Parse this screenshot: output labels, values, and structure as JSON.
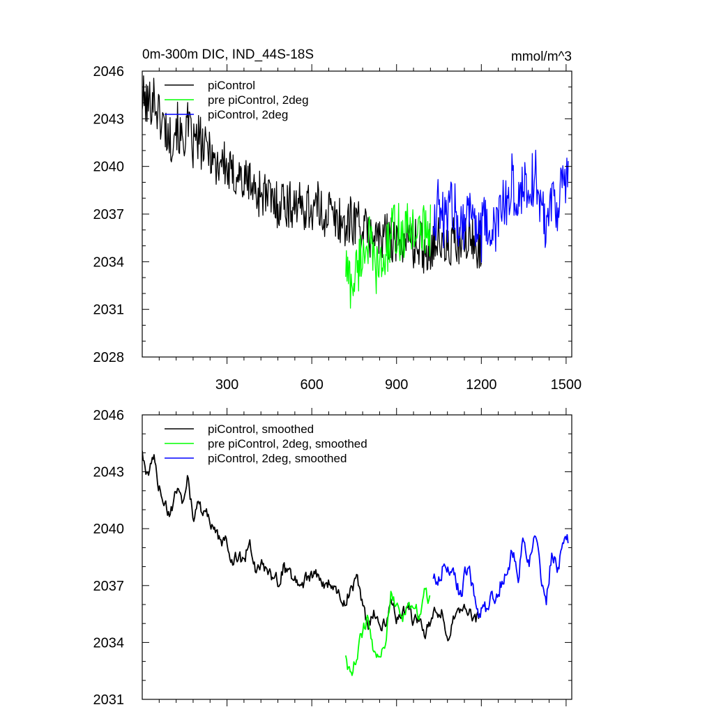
{
  "chart_data": [
    {
      "type": "line",
      "title": "0m-300m DIC, IND_44S-18S",
      "units": "mmol/m^3",
      "xlim": [
        0,
        1520
      ],
      "ylim": [
        2028,
        2046
      ],
      "x_ticks": [
        300,
        600,
        900,
        1200,
        1500
      ],
      "x_tick_labels": [
        "300",
        "600",
        "900",
        "1200",
        "1500"
      ],
      "y_ticks": [
        2028,
        2031,
        2034,
        2037,
        2040,
        2043,
        2046
      ],
      "y_tick_labels": [
        "2028",
        "2031",
        "2034",
        "2037",
        "2040",
        "2043",
        "2046"
      ],
      "grid": false,
      "legend_position": "top-left",
      "series": [
        {
          "name": "piControl",
          "color": "#000000",
          "x": [
            0,
            20,
            40,
            60,
            80,
            100,
            120,
            140,
            160,
            180,
            200,
            220,
            240,
            260,
            280,
            300,
            320,
            340,
            360,
            380,
            400,
            420,
            440,
            460,
            480,
            500,
            520,
            540,
            560,
            580,
            600,
            620,
            640,
            660,
            680,
            700,
            720,
            740,
            760,
            780,
            800,
            820,
            840,
            860,
            880,
            900,
            920,
            940,
            960,
            980,
            1000,
            1020,
            1040,
            1060,
            1080,
            1100,
            1120,
            1140,
            1160,
            1180,
            1200
          ],
          "y": [
            2044.3,
            2043.8,
            2044.5,
            2043.2,
            2042.5,
            2041.6,
            2042.8,
            2041.4,
            2042.6,
            2041.2,
            2041.8,
            2040.9,
            2041.3,
            2039.9,
            2040.6,
            2039.7,
            2039.3,
            2039.7,
            2038.8,
            2039.3,
            2038.2,
            2038.5,
            2038.1,
            2037.8,
            2037.6,
            2038.0,
            2037.4,
            2037.9,
            2037.3,
            2037.6,
            2037.3,
            2037.5,
            2036.9,
            2037.3,
            2036.6,
            2036.7,
            2036.2,
            2036.6,
            2036.7,
            2036.1,
            2035.6,
            2036.0,
            2035.3,
            2035.5,
            2035.8,
            2034.9,
            2035.4,
            2035.6,
            2035.0,
            2035.3,
            2034.6,
            2035.1,
            2035.5,
            2035.0,
            2034.7,
            2035.3,
            2034.9,
            2035.2,
            2035.4,
            2034.9,
            2035.3
          ],
          "spread": 1.6
        },
        {
          "name": "pre piControl, 2deg",
          "color": "#00ff00",
          "x": [
            720,
            740,
            760,
            780,
            800,
            820,
            840,
            860,
            880,
            900,
            920,
            940,
            960,
            980,
            1000,
            1020
          ],
          "y": [
            2033.8,
            2032.4,
            2033.6,
            2034.6,
            2035.5,
            2033.8,
            2033.4,
            2034.3,
            2035.6,
            2036.2,
            2035.4,
            2036.0,
            2036.3,
            2035.5,
            2036.3,
            2036.0
          ],
          "spread": 1.8
        },
        {
          "name": "piControl, 2deg",
          "color": "#0000ff",
          "x": [
            1030,
            1050,
            1070,
            1090,
            1110,
            1130,
            1150,
            1170,
            1190,
            1210,
            1230,
            1250,
            1270,
            1290,
            1310,
            1330,
            1350,
            1370,
            1390,
            1410,
            1430,
            1450,
            1470,
            1490,
            1510
          ],
          "y": [
            2036.9,
            2037.5,
            2036.2,
            2037.7,
            2037.1,
            2036.4,
            2037.0,
            2037.6,
            2035.4,
            2036.2,
            2036.0,
            2035.9,
            2037.3,
            2037.8,
            2039.0,
            2037.3,
            2039.4,
            2038.4,
            2039.6,
            2037.6,
            2036.4,
            2038.5,
            2037.6,
            2038.9,
            2039.3
          ],
          "spread": 1.9
        }
      ]
    },
    {
      "type": "line",
      "title": "",
      "xlim": [
        0,
        1520
      ],
      "ylim": [
        2031,
        2046
      ],
      "x_ticks": [
        300,
        600,
        900,
        1200,
        1500
      ],
      "y_ticks": [
        2031,
        2034,
        2037,
        2040,
        2043,
        2046
      ],
      "y_tick_labels": [
        "2031",
        "2034",
        "2037",
        "2040",
        "2043",
        "2046"
      ],
      "grid": false,
      "legend_position": "top-left",
      "series": [
        {
          "name": "piControl, smoothed",
          "color": "#000000",
          "x": [
            0,
            20,
            40,
            60,
            80,
            100,
            120,
            140,
            160,
            180,
            200,
            220,
            240,
            260,
            280,
            300,
            320,
            340,
            360,
            380,
            400,
            420,
            440,
            460,
            480,
            500,
            520,
            540,
            560,
            580,
            600,
            620,
            640,
            660,
            680,
            700,
            720,
            740,
            760,
            780,
            800,
            820,
            840,
            860,
            880,
            900,
            920,
            940,
            960,
            980,
            1000,
            1020,
            1040,
            1060,
            1080,
            1100,
            1120,
            1140,
            1160,
            1180,
            1200
          ],
          "y": [
            2044.0,
            2042.6,
            2043.9,
            2042.2,
            2041.4,
            2040.6,
            2042.2,
            2041.5,
            2042.7,
            2040.8,
            2041.2,
            2040.8,
            2040.4,
            2039.6,
            2039.2,
            2039.4,
            2038.4,
            2038.6,
            2038.0,
            2039.6,
            2038.0,
            2038.3,
            2037.6,
            2037.5,
            2037.3,
            2038.0,
            2037.4,
            2037.4,
            2037.1,
            2037.3,
            2037.4,
            2037.6,
            2037.1,
            2037.2,
            2036.8,
            2036.4,
            2036.2,
            2036.9,
            2037.3,
            2035.9,
            2034.7,
            2035.7,
            2034.6,
            2035.2,
            2036.2,
            2035.4,
            2035.4,
            2035.9,
            2035.1,
            2035.2,
            2034.6,
            2035.1,
            2035.6,
            2035.6,
            2034.2,
            2035.3,
            2035.3,
            2035.6,
            2035.4,
            2035.1,
            2035.6
          ],
          "spread": 0.7
        },
        {
          "name": "pre piControl, 2deg, smoothed",
          "color": "#00ff00",
          "x": [
            720,
            740,
            760,
            780,
            800,
            820,
            840,
            860,
            880,
            900,
            920,
            940,
            960,
            980,
            1000,
            1020
          ],
          "y": [
            2033.2,
            2032.1,
            2033.5,
            2034.4,
            2035.5,
            2033.6,
            2033.2,
            2034.0,
            2036.4,
            2035.8,
            2035.1,
            2036.0,
            2036.2,
            2035.4,
            2036.6,
            2036.3
          ],
          "spread": 0.7
        },
        {
          "name": "piControl, 2deg, smoothed",
          "color": "#0000ff",
          "x": [
            1030,
            1050,
            1070,
            1090,
            1110,
            1130,
            1150,
            1170,
            1190,
            1210,
            1230,
            1250,
            1270,
            1290,
            1310,
            1330,
            1350,
            1370,
            1390,
            1410,
            1430,
            1450,
            1470,
            1490,
            1510
          ],
          "y": [
            2037.2,
            2037.4,
            2038.3,
            2037.9,
            2037.0,
            2036.5,
            2038.1,
            2036.9,
            2035.7,
            2035.8,
            2036.0,
            2036.6,
            2037.2,
            2037.8,
            2039.1,
            2037.6,
            2039.6,
            2038.2,
            2039.4,
            2037.7,
            2036.5,
            2038.7,
            2037.8,
            2039.1,
            2039.3
          ],
          "spread": 0.9
        }
      ]
    }
  ]
}
